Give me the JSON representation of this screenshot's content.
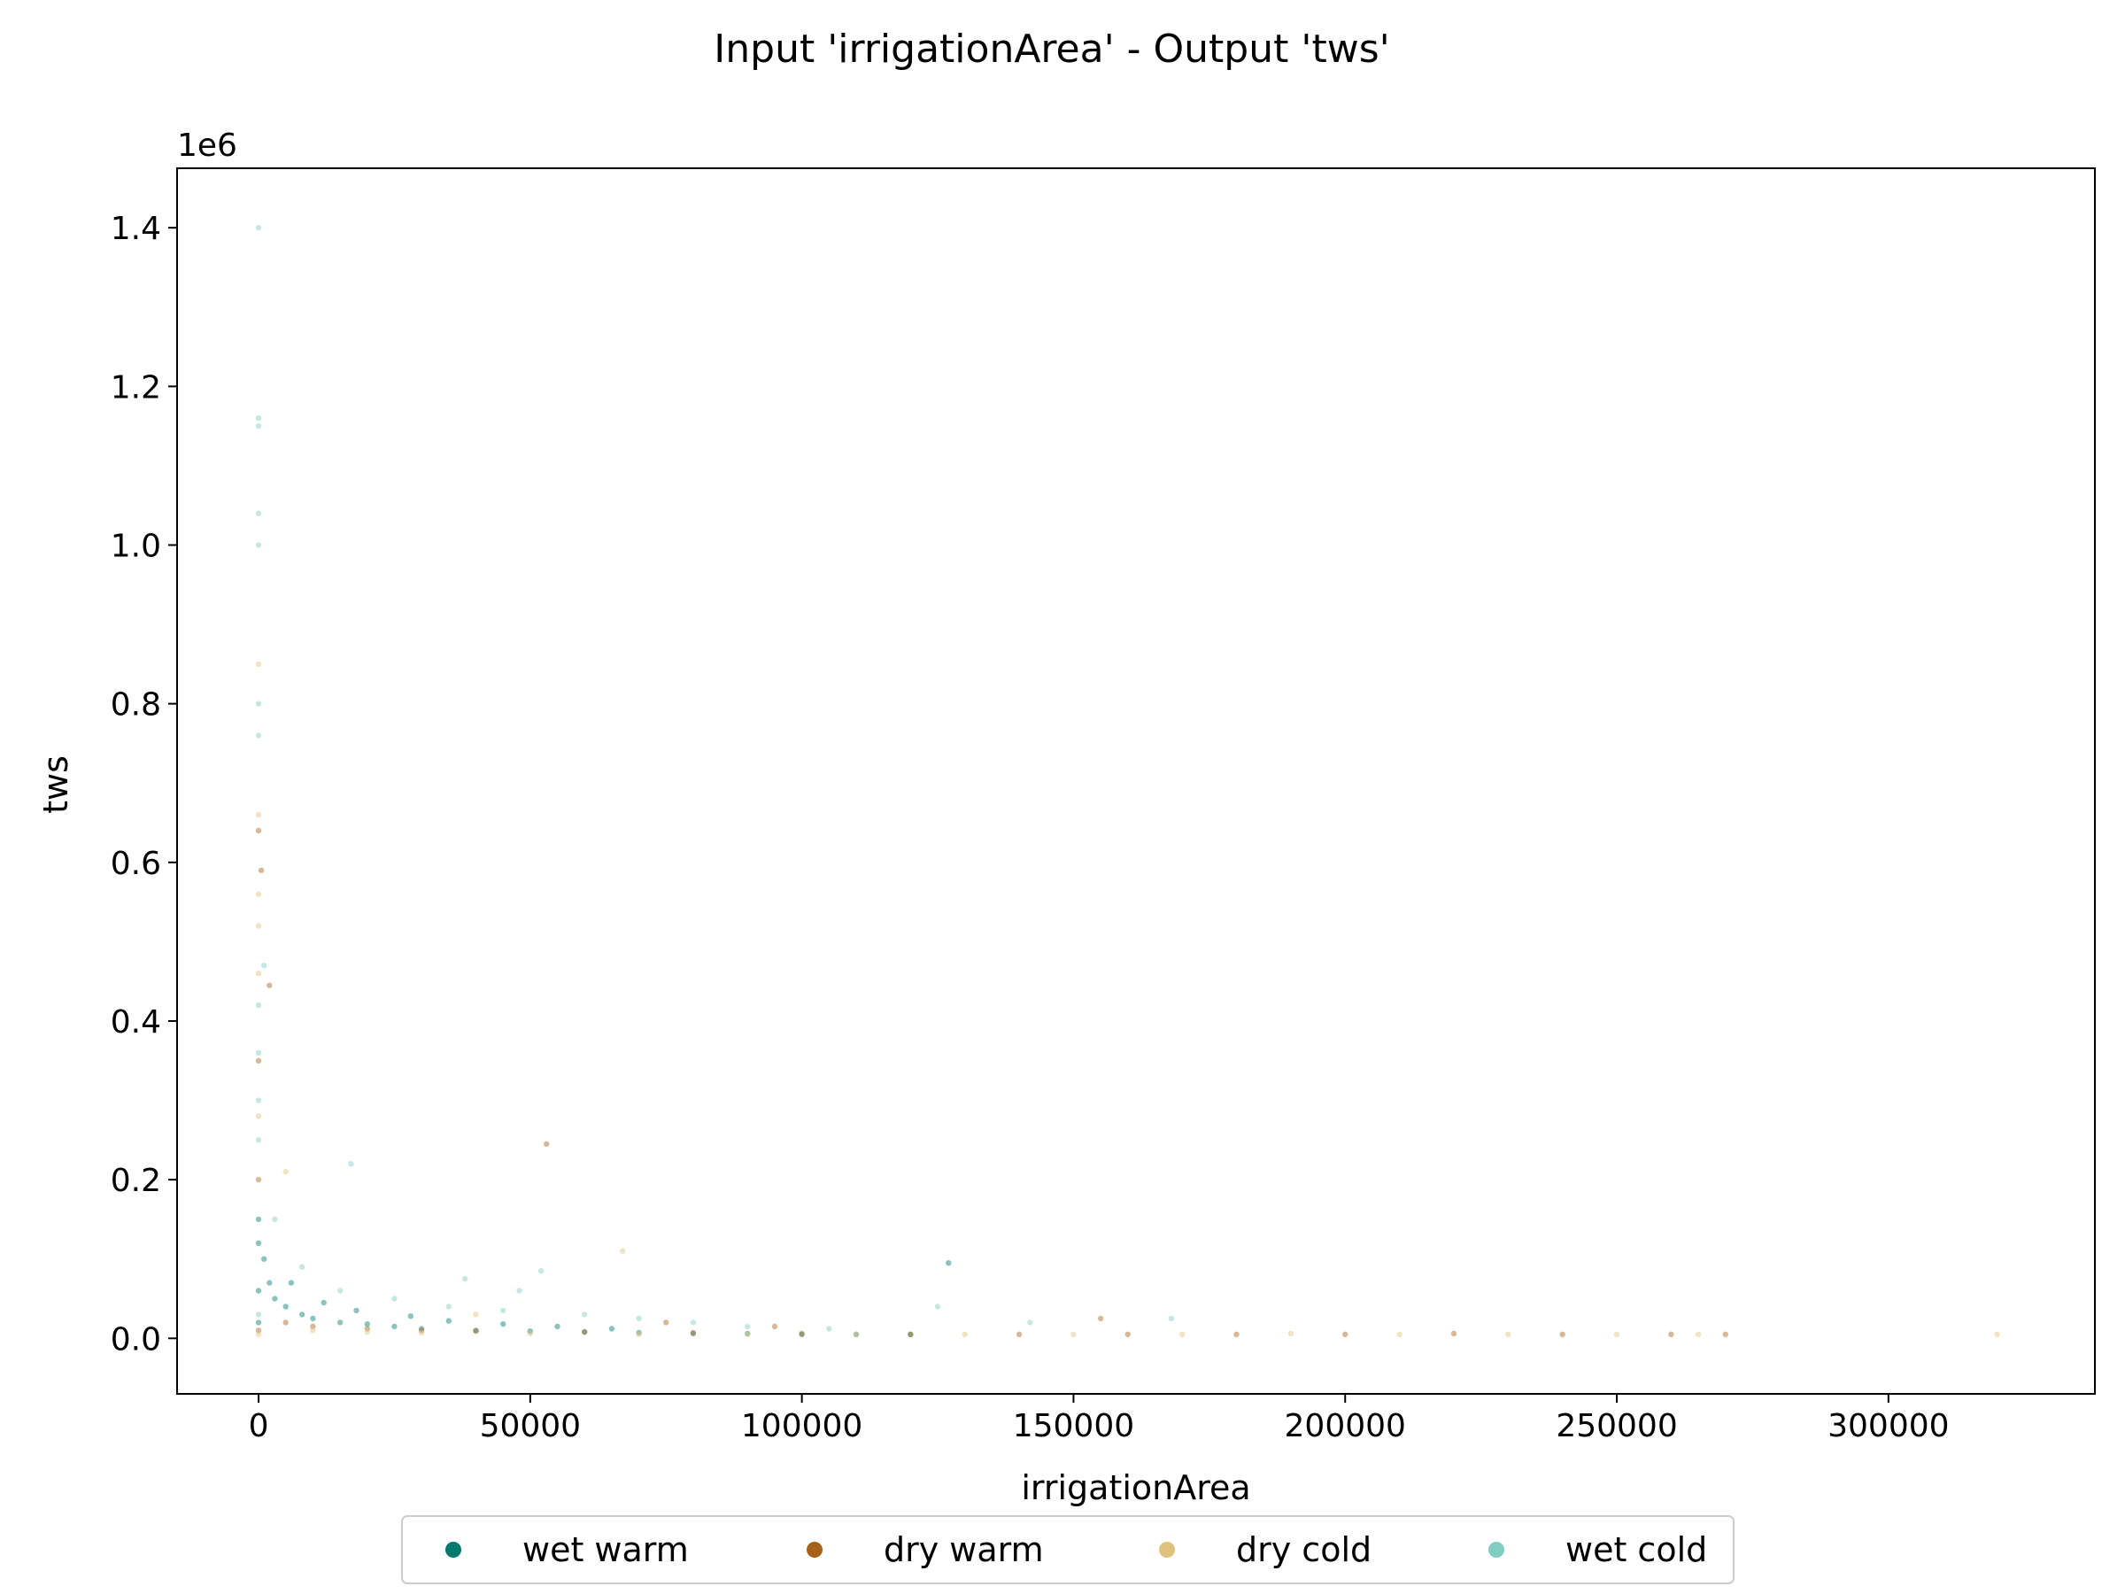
{
  "chart_data": {
    "type": "scatter",
    "title": "Input 'irrigationArea' - Output 'tws'",
    "xlabel": "irrigationArea",
    "ylabel": "tws",
    "y_scale_note": "1e6",
    "xlim": [
      -15000,
      338000
    ],
    "ylim": [
      -70000,
      1475000
    ],
    "xticks": [
      0,
      50000,
      100000,
      150000,
      200000,
      250000,
      300000
    ],
    "xtick_labels": [
      "0",
      "50000",
      "100000",
      "150000",
      "200000",
      "250000",
      "300000"
    ],
    "yticks": [
      0,
      200000,
      400000,
      600000,
      800000,
      1000000,
      1200000,
      1400000
    ],
    "ytick_labels": [
      "0.0",
      "0.2",
      "0.4",
      "0.6",
      "0.8",
      "1.0",
      "1.2",
      "1.4"
    ],
    "grid": false,
    "legend_position": "bottom-center",
    "series": [
      {
        "name": "wet warm",
        "color": "#01796f",
        "points": [
          [
            0,
            20000
          ],
          [
            0,
            60000
          ],
          [
            0,
            120000
          ],
          [
            0,
            150000
          ],
          [
            1000,
            100000
          ],
          [
            2000,
            70000
          ],
          [
            3000,
            50000
          ],
          [
            5000,
            40000
          ],
          [
            8000,
            30000
          ],
          [
            10000,
            25000
          ],
          [
            15000,
            20000
          ],
          [
            20000,
            18000
          ],
          [
            25000,
            15000
          ],
          [
            30000,
            12000
          ],
          [
            40000,
            10000
          ],
          [
            50000,
            9000
          ],
          [
            60000,
            8000
          ],
          [
            70000,
            7000
          ],
          [
            80000,
            6000
          ],
          [
            90000,
            6000
          ],
          [
            100000,
            5000
          ],
          [
            110000,
            5000
          ],
          [
            120000,
            5000
          ],
          [
            127000,
            95000
          ],
          [
            6000,
            70000
          ],
          [
            12000,
            45000
          ],
          [
            18000,
            35000
          ],
          [
            28000,
            28000
          ],
          [
            35000,
            22000
          ],
          [
            45000,
            18000
          ],
          [
            55000,
            15000
          ],
          [
            65000,
            12000
          ]
        ]
      },
      {
        "name": "dry warm",
        "color": "#a6611a",
        "points": [
          [
            0,
            10000
          ],
          [
            0,
            200000
          ],
          [
            0,
            350000
          ],
          [
            0,
            640000
          ],
          [
            500,
            590000
          ],
          [
            2000,
            445000
          ],
          [
            5000,
            20000
          ],
          [
            10000,
            15000
          ],
          [
            20000,
            12000
          ],
          [
            30000,
            10000
          ],
          [
            40000,
            9000
          ],
          [
            53000,
            245000
          ],
          [
            60000,
            8000
          ],
          [
            80000,
            7000
          ],
          [
            100000,
            6000
          ],
          [
            120000,
            5000
          ],
          [
            140000,
            5000
          ],
          [
            155000,
            25000
          ],
          [
            160000,
            5000
          ],
          [
            180000,
            5000
          ],
          [
            200000,
            5000
          ],
          [
            220000,
            6000
          ],
          [
            240000,
            5000
          ],
          [
            260000,
            5000
          ],
          [
            270000,
            5000
          ],
          [
            75000,
            20000
          ],
          [
            95000,
            15000
          ]
        ]
      },
      {
        "name": "dry cold",
        "color": "#dfc27d",
        "points": [
          [
            0,
            5000
          ],
          [
            0,
            280000
          ],
          [
            0,
            460000
          ],
          [
            0,
            520000
          ],
          [
            0,
            560000
          ],
          [
            0,
            660000
          ],
          [
            0,
            850000
          ],
          [
            5000,
            210000
          ],
          [
            10000,
            10000
          ],
          [
            20000,
            8000
          ],
          [
            30000,
            7000
          ],
          [
            50000,
            6000
          ],
          [
            70000,
            5000
          ],
          [
            90000,
            5000
          ],
          [
            110000,
            5000
          ],
          [
            130000,
            5000
          ],
          [
            150000,
            5000
          ],
          [
            170000,
            5000
          ],
          [
            190000,
            6000
          ],
          [
            210000,
            5000
          ],
          [
            230000,
            5000
          ],
          [
            250000,
            5000
          ],
          [
            265000,
            5000
          ],
          [
            320000,
            5000
          ],
          [
            67000,
            110000
          ],
          [
            40000,
            30000
          ]
        ]
      },
      {
        "name": "wet cold",
        "color": "#80cdc1",
        "points": [
          [
            0,
            30000
          ],
          [
            0,
            250000
          ],
          [
            0,
            300000
          ],
          [
            0,
            360000
          ],
          [
            0,
            420000
          ],
          [
            0,
            760000
          ],
          [
            0,
            800000
          ],
          [
            0,
            1000000
          ],
          [
            0,
            1040000
          ],
          [
            0,
            1150000
          ],
          [
            0,
            1160000
          ],
          [
            0,
            1400000
          ],
          [
            1000,
            470000
          ],
          [
            17000,
            220000
          ],
          [
            3000,
            150000
          ],
          [
            8000,
            90000
          ],
          [
            15000,
            60000
          ],
          [
            25000,
            50000
          ],
          [
            35000,
            40000
          ],
          [
            45000,
            35000
          ],
          [
            52000,
            85000
          ],
          [
            60000,
            30000
          ],
          [
            70000,
            25000
          ],
          [
            80000,
            20000
          ],
          [
            90000,
            15000
          ],
          [
            105000,
            12000
          ],
          [
            125000,
            40000
          ],
          [
            142000,
            20000
          ],
          [
            168000,
            25000
          ],
          [
            48000,
            60000
          ],
          [
            38000,
            75000
          ]
        ]
      }
    ]
  }
}
